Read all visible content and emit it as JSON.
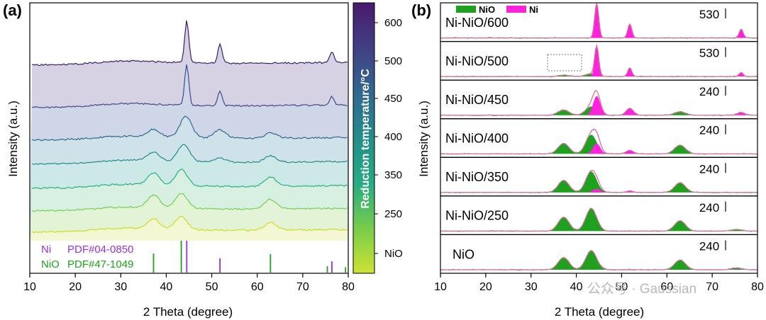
{
  "panel_labels": [
    "(a)",
    "(b)"
  ],
  "watermark": "公众号 · Gaussian",
  "colors": {
    "nio": "#1fa01f",
    "ni": "#ff22dd",
    "fit": "#d86f9a",
    "raw": "#7a7a7a",
    "colorbar": [
      "#cfe234",
      "#77cc4a",
      "#27ab84",
      "#238d8a",
      "#31688e",
      "#423f85",
      "#481a6c"
    ]
  },
  "chart_data": [
    {
      "type": "line",
      "panel": "(a)",
      "xlabel": "2 Theta (degree)",
      "ylabel": "Intensity (a.u.)",
      "xlim": [
        10,
        80
      ],
      "xticks": [
        10,
        20,
        30,
        40,
        50,
        60,
        70,
        80
      ],
      "grid": false,
      "colorbar": {
        "label": "Reduction temperature/°C",
        "ticks": [
          "NiO",
          "250",
          "300",
          "350",
          "400",
          "450",
          "500",
          "600"
        ]
      },
      "series": [
        {
          "name": "600",
          "color": "#3b1f6e",
          "fill": "#d7d2e3",
          "peaks": [
            [
              44.5,
              1.0
            ],
            [
              51.8,
              0.45
            ],
            [
              76.4,
              0.25
            ]
          ]
        },
        {
          "name": "500",
          "color": "#3f4a8a",
          "fill": "#cfd6e8",
          "peaks": [
            [
              44.5,
              0.95
            ],
            [
              51.8,
              0.35
            ],
            [
              76.4,
              0.2
            ]
          ]
        },
        {
          "name": "450",
          "color": "#31688e",
          "fill": "#cfe2ea",
          "peaks": [
            [
              37.2,
              0.18
            ],
            [
              44.3,
              0.5
            ],
            [
              51.8,
              0.2
            ],
            [
              62.9,
              0.12
            ]
          ]
        },
        {
          "name": "400",
          "color": "#238a8d",
          "fill": "#cde9e7",
          "peaks": [
            [
              37.2,
              0.2
            ],
            [
              43.8,
              0.4
            ],
            [
              51.8,
              0.1
            ],
            [
              62.9,
              0.15
            ]
          ]
        },
        {
          "name": "350",
          "color": "#2bb07f",
          "fill": "#d7f0e2",
          "peaks": [
            [
              37.2,
              0.28
            ],
            [
              43.3,
              0.38
            ],
            [
              62.9,
              0.22
            ]
          ]
        },
        {
          "name": "250",
          "color": "#75d054",
          "fill": "#e3f3d5",
          "peaks": [
            [
              37.2,
              0.3
            ],
            [
              43.3,
              0.35
            ],
            [
              62.9,
              0.22
            ]
          ]
        },
        {
          "name": "NiO",
          "color": "#c8e020",
          "fill": "#f4f7d4",
          "peaks": [
            [
              37.2,
              0.24
            ],
            [
              43.3,
              0.3
            ],
            [
              62.9,
              0.18
            ]
          ]
        }
      ],
      "references": [
        {
          "name": "Ni",
          "card": "PDF#04-0850",
          "color": "#9b30e0",
          "positions": [
            44.5,
            51.8,
            76.4
          ],
          "intensities": [
            1.0,
            0.45,
            0.35
          ]
        },
        {
          "name": "NiO",
          "card": "PDF#47-1049",
          "color": "#1fa01f",
          "positions": [
            37.2,
            43.3,
            62.9,
            75.4,
            79.4
          ],
          "intensities": [
            0.6,
            1.0,
            0.58,
            0.2,
            0.17
          ]
        }
      ]
    },
    {
      "type": "area",
      "panel": "(b)",
      "xlabel": "2 Theta (degree)",
      "ylabel": "Intensity (a.u.)",
      "xlim": [
        10,
        80
      ],
      "xticks": [
        10,
        20,
        30,
        40,
        50,
        60,
        70,
        80
      ],
      "legend": {
        "position": "top-left",
        "entries": [
          "NiO",
          "Ni"
        ]
      },
      "panels": [
        {
          "label": "Ni-NiO/600",
          "scale": "530",
          "nio": [],
          "ni": [
            [
              44.5,
              1.0
            ],
            [
              51.8,
              0.4
            ],
            [
              76.4,
              0.25
            ]
          ]
        },
        {
          "label": "Ni-NiO/500",
          "scale": "530",
          "nio": [
            [
              37.2,
              0.04
            ],
            [
              43.3,
              0.08
            ]
          ],
          "ni": [
            [
              44.5,
              0.85
            ],
            [
              51.8,
              0.25
            ],
            [
              76.4,
              0.12
            ]
          ]
        },
        {
          "label": "Ni-NiO/450",
          "scale": "240",
          "nio": [
            [
              37.2,
              0.15
            ],
            [
              43.3,
              0.25
            ],
            [
              62.9,
              0.1
            ]
          ],
          "ni": [
            [
              44.5,
              0.55
            ],
            [
              51.8,
              0.2
            ],
            [
              76.4,
              0.08
            ]
          ]
        },
        {
          "label": "Ni-NiO/400",
          "scale": "240",
          "nio": [
            [
              37.2,
              0.3
            ],
            [
              43.3,
              0.55
            ],
            [
              62.9,
              0.25
            ]
          ],
          "ni": [
            [
              44.5,
              0.3
            ],
            [
              51.8,
              0.1
            ]
          ]
        },
        {
          "label": "Ni-NiO/350",
          "scale": "240",
          "nio": [
            [
              37.2,
              0.35
            ],
            [
              43.3,
              0.6
            ],
            [
              62.9,
              0.28
            ]
          ],
          "ni": [
            [
              44.5,
              0.1
            ],
            [
              51.8,
              0.04
            ]
          ]
        },
        {
          "label": "Ni-NiO/250",
          "scale": "240",
          "nio": [
            [
              37.2,
              0.4
            ],
            [
              43.3,
              0.65
            ],
            [
              62.9,
              0.3
            ],
            [
              75.4,
              0.05
            ]
          ],
          "ni": []
        },
        {
          "label": "NiO",
          "scale": "240",
          "nio": [
            [
              37.2,
              0.35
            ],
            [
              43.3,
              0.55
            ],
            [
              62.9,
              0.28
            ],
            [
              75.4,
              0.05
            ]
          ],
          "ni": []
        }
      ]
    }
  ]
}
